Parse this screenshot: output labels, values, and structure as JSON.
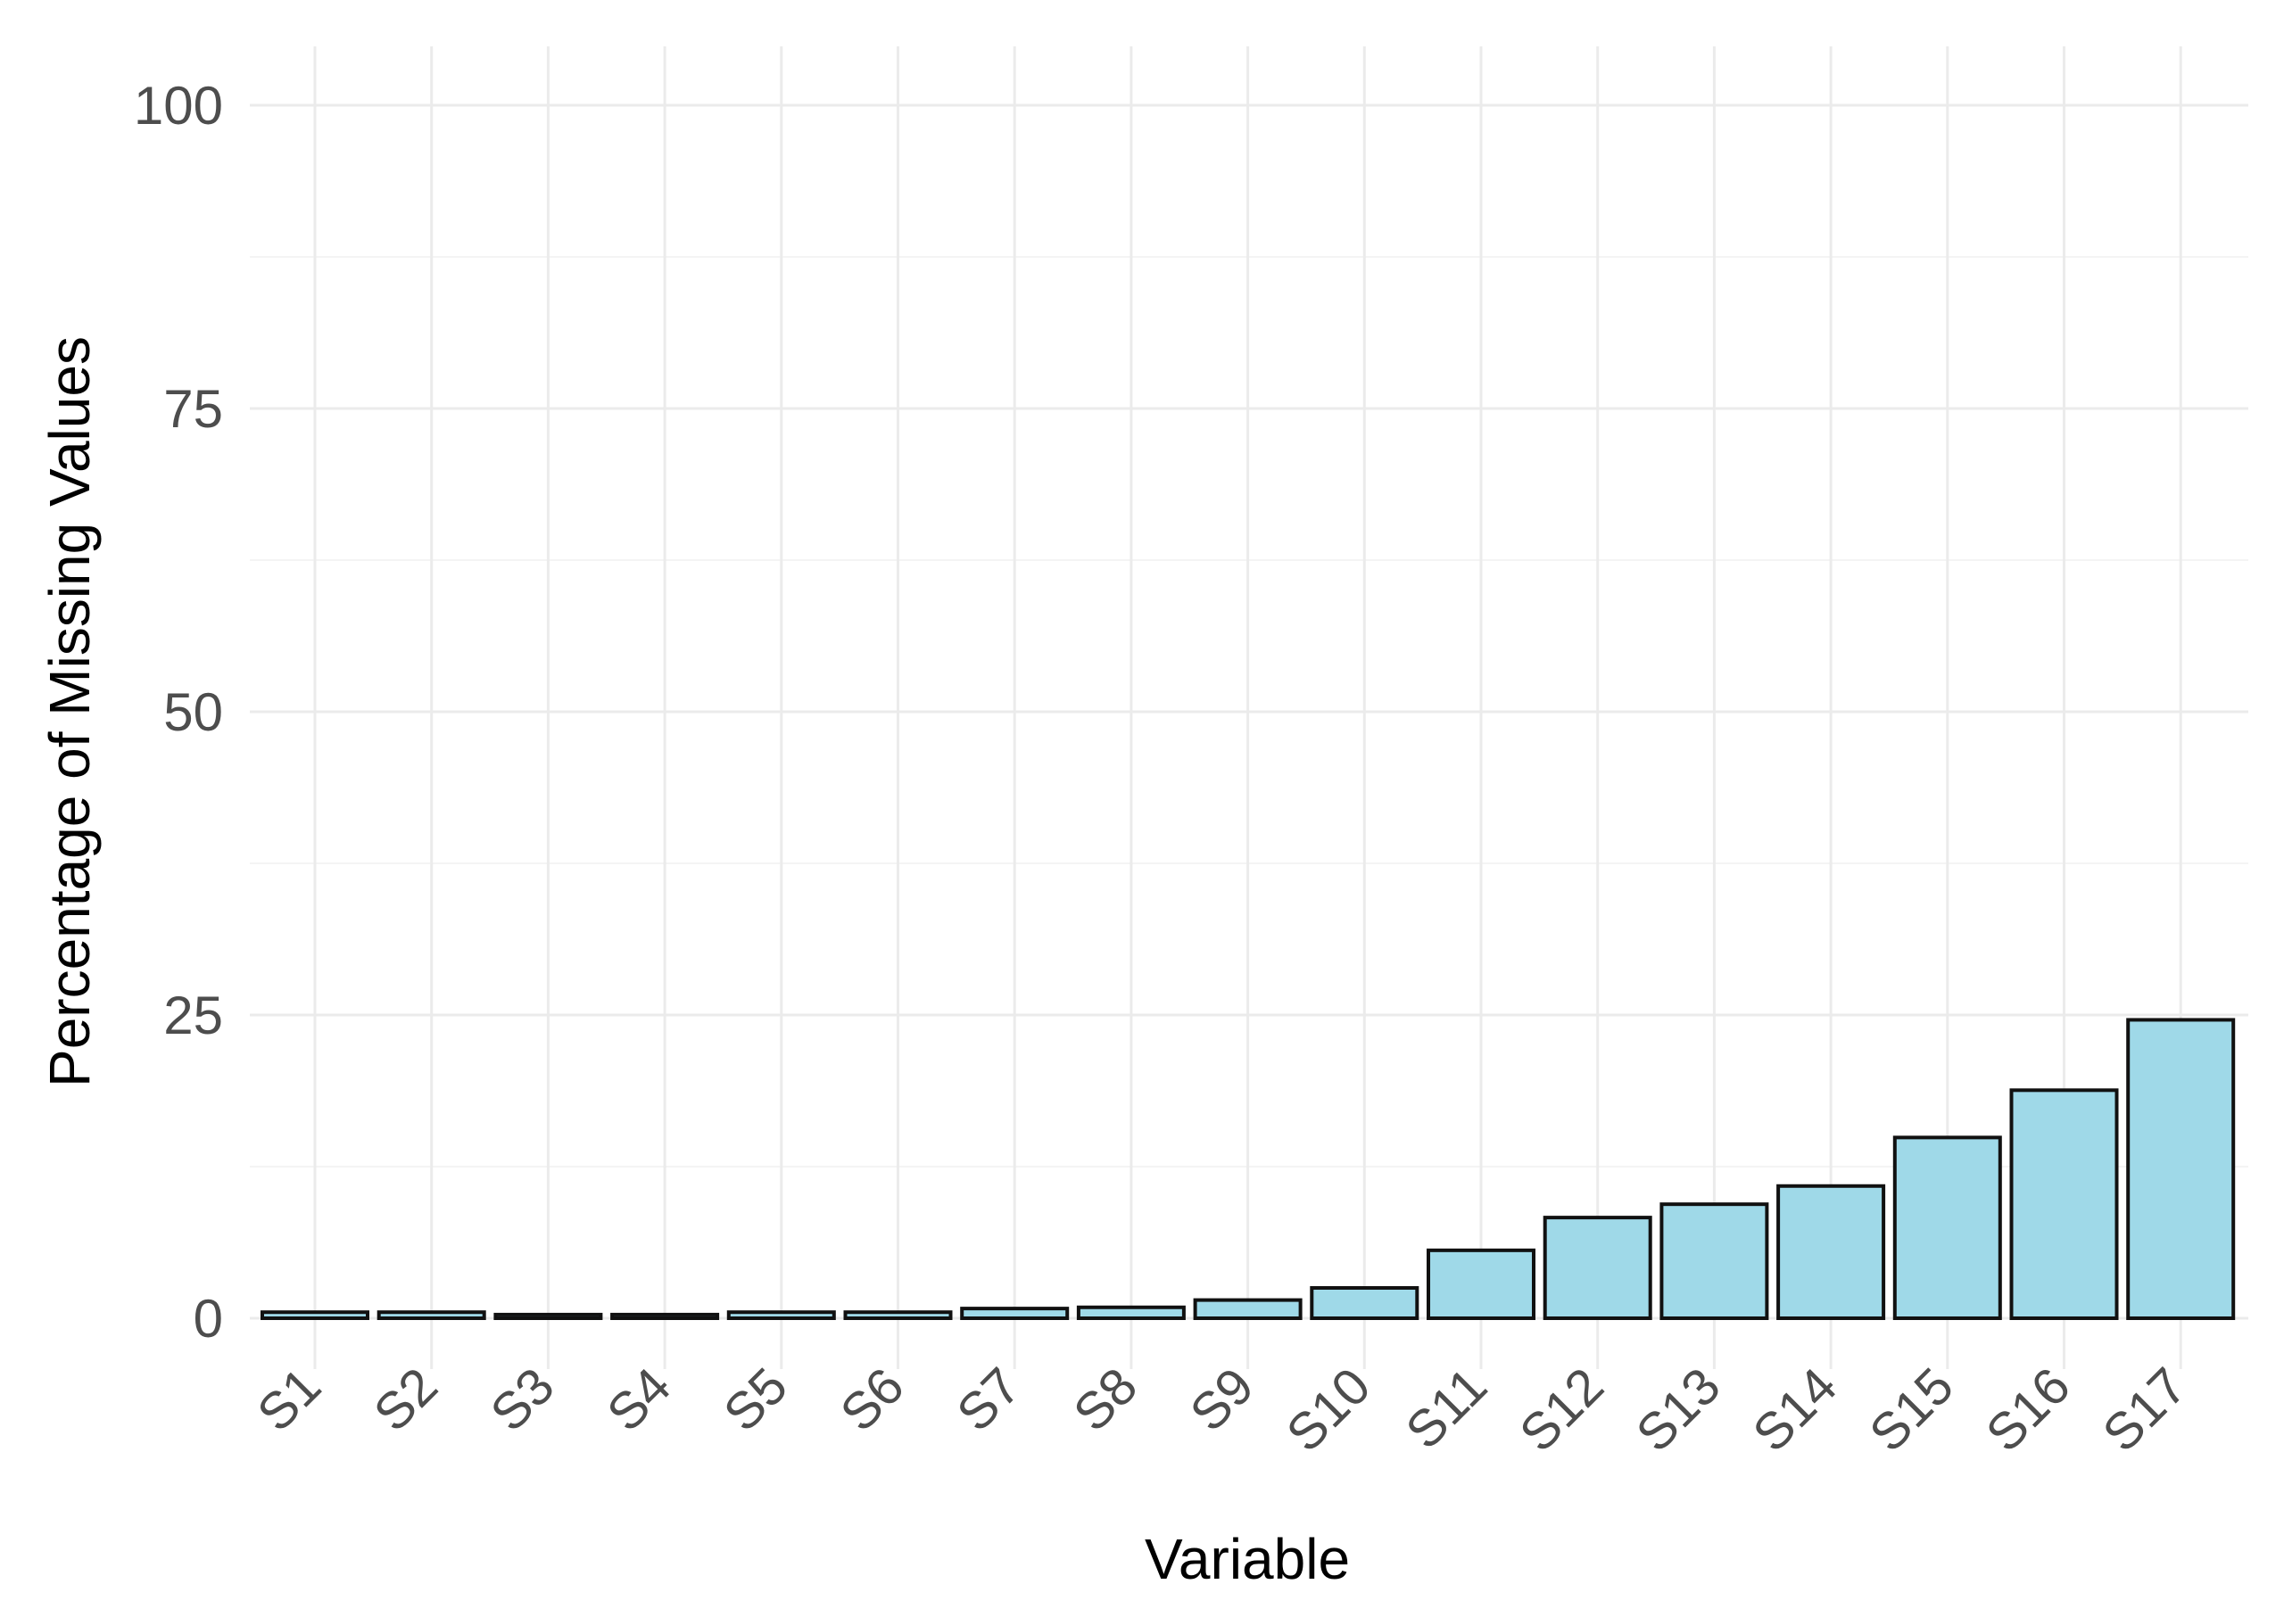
{
  "chart_data": {
    "type": "bar",
    "title": "",
    "xlabel": "Variable",
    "ylabel": "Percentage of Missing Values",
    "categories": [
      "S1",
      "S2",
      "S3",
      "S4",
      "S5",
      "S6",
      "S7",
      "S8",
      "S9",
      "S10",
      "S11",
      "S12",
      "S13",
      "S14",
      "S15",
      "S16",
      "S17"
    ],
    "values": [
      0.5,
      0.5,
      0.3,
      0.3,
      0.5,
      0.5,
      0.8,
      0.9,
      1.5,
      2.5,
      5.6,
      8.3,
      9.4,
      10.9,
      14.9,
      18.8,
      24.6
    ],
    "ylim": [
      0,
      100
    ],
    "yticks": [
      0,
      25,
      50,
      75,
      100
    ],
    "grid": true,
    "legend": "none",
    "bar_color": "#9fd9e8",
    "bar_outline": "#111111"
  }
}
